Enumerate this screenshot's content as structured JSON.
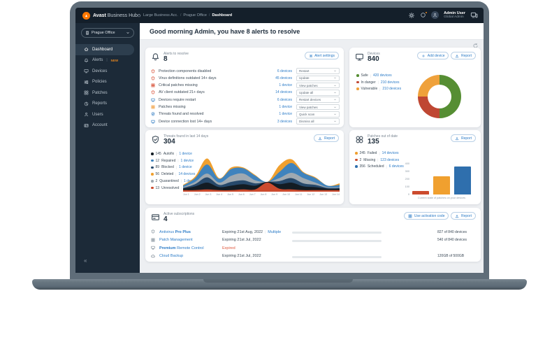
{
  "ui": {
    "divider": "|",
    "chevron_icon": "chevron-down-icon",
    "collapse_glyph": "«",
    "refresh_icon": "refresh-icon"
  },
  "palette": {
    "accent_blue": "#2b7bc7",
    "alert_red": "#d6492f",
    "warn_orange": "#f09d3c",
    "ok_green": "#568e33",
    "brand_orange": "#ff7800"
  },
  "topbar": {
    "brand_bold": "Avast",
    "brand_rest": " Business Hub",
    "breadcrumb": {
      "items": [
        "Large Business Acc.",
        "Prague Office",
        "Dashboard"
      ],
      "separator": "/",
      "home_icon": "home-icon"
    },
    "icons": {
      "settings": "gear-icon",
      "notifications": "notification-icon",
      "avatar": "user-icon",
      "devices": "devices-icon"
    },
    "user": {
      "name": "Admin User",
      "role": "Global Admin"
    }
  },
  "sidebar": {
    "org_selector": {
      "label": "Prague Office",
      "icon": "building-icon"
    },
    "items": [
      {
        "label": "Dashboard",
        "icon": "home-icon"
      },
      {
        "label": "Alerts",
        "icon": "bell-icon",
        "badge": "NEW"
      },
      {
        "label": "Devices",
        "icon": "monitor-icon"
      },
      {
        "label": "Policies",
        "icon": "sliders-icon"
      },
      {
        "label": "Patches",
        "icon": "patch-icon"
      },
      {
        "label": "Reports",
        "icon": "pie-icon"
      },
      {
        "label": "Users",
        "icon": "user-icon"
      },
      {
        "label": "Account",
        "icon": "idcard-icon"
      }
    ]
  },
  "page": {
    "greeting": "Good morning Admin, you have 8 alerts to resolve"
  },
  "alerts_card": {
    "title": "Alerts to resolve",
    "count": "8",
    "icon": "bell-icon",
    "settings_button": "Alert settings",
    "settings_icon": "gear-icon",
    "rows": [
      {
        "icon": "shield-icon",
        "color": "#d6492f",
        "label": "Protection components disabled",
        "devices": "6 devices",
        "action": "Restart"
      },
      {
        "icon": "shield-icon",
        "color": "#d6492f",
        "label": "Virus definitions outdated 14+ days",
        "devices": "45 devices",
        "action": "Update"
      },
      {
        "icon": "patch-icon",
        "color": "#d6492f",
        "label": "Critical patches missing",
        "devices": "1 device",
        "action": "View patches"
      },
      {
        "icon": "shield-icon",
        "color": "#d6492f",
        "label": "AV client outdated 21+ days",
        "devices": "14 devices",
        "action": "Update all"
      },
      {
        "icon": "monitor-icon",
        "color": "#3e84c6",
        "label": "Devices require restart",
        "devices": "6 devices",
        "action": "Restart devices"
      },
      {
        "icon": "patch-icon",
        "color": "#f09d3c",
        "label": "Patches missing",
        "devices": "1 device",
        "action": "View patches"
      },
      {
        "icon": "shield-check-icon",
        "color": "#3e84c6",
        "label": "Threats found and resolved",
        "devices": "1 device",
        "action": "Quick scan"
      },
      {
        "icon": "monitor-icon",
        "color": "#3e84c6",
        "label": "Device connection lost 14+ days",
        "devices": "3 devices",
        "action": "Dismiss all"
      }
    ]
  },
  "devices_card": {
    "title": "Devices",
    "count": "840",
    "icon": "monitor-icon",
    "add_button": "Add device",
    "add_icon": "plus-icon",
    "report_button": "Report",
    "report_icon": "download-icon",
    "legend": [
      {
        "label": "Safe",
        "devices": "420 devices",
        "color": "#568e33"
      },
      {
        "label": "In danger",
        "devices": "210 devices",
        "color": "#bf4733"
      },
      {
        "label": "Vulnerable",
        "devices": "210 devices",
        "color": "#efa13b"
      }
    ]
  },
  "threats_card": {
    "title": "Threats found in last 14 days",
    "count": "304",
    "icon": "shield-check-icon",
    "report_button": "Report",
    "report_icon": "download-icon",
    "legend": [
      {
        "count": "145",
        "label": "Autofix",
        "devices": "1 device",
        "color": "#131c24"
      },
      {
        "count": "12",
        "label": "Repaired",
        "devices": "1 device",
        "color": "#3f83bd"
      },
      {
        "count": "89",
        "label": "Blocked",
        "devices": "1 device",
        "color": "#27496b"
      },
      {
        "count": "56",
        "label": "Deleted",
        "devices": "14 devices",
        "color": "#f0a02f"
      },
      {
        "count": "2",
        "label": "Quarantined",
        "devices": "1 device",
        "color": "#9fa9b1"
      },
      {
        "count": "13",
        "label": "Unresolved",
        "devices": "1 device",
        "color": "#cc4b2e"
      }
    ]
  },
  "patches_card": {
    "title": "Patches out of date",
    "count": "135",
    "icon": "circles-icon",
    "report_button": "Report",
    "report_icon": "download-icon",
    "legend": [
      {
        "count": "245",
        "label": "Failed",
        "devices": "14 devices",
        "color": "#f0a02f"
      },
      {
        "count": "2",
        "label": "Missing",
        "devices": "123 devices",
        "color": "#cc4b2e"
      },
      {
        "count": "356",
        "label": "Scheduled",
        "devices": "6 devices",
        "color": "#2f6fad"
      }
    ]
  },
  "subscriptions_card": {
    "title": "Active subscriptions",
    "count": "4",
    "icon": "card-icon",
    "activation_button": "Use activation code",
    "activation_icon": "grid-icon",
    "report_button": "Report",
    "report_icon": "download-icon",
    "rows": [
      {
        "icon": "shield-icon",
        "pre": "Antivirus ",
        "bold": "Pro Plus",
        "post": "",
        "expiry": "Expiring 21st Aug, 2022",
        "extra": "Multiple",
        "progress": 90,
        "usage": "827 of 840 devices"
      },
      {
        "icon": "patch-icon",
        "pre": "Patch Management",
        "bold": "",
        "post": "",
        "expiry": "Expiring 21st Jul, 2022",
        "progress": 62,
        "usage": "540 of 840 devices"
      },
      {
        "icon": "monitor-icon",
        "pre": "",
        "bold": "Premium",
        "post": " Remote Control",
        "expiry": "Expired",
        "expiry_color": "#e0593f"
      },
      {
        "icon": "cloud-icon",
        "pre": "Cloud Backup",
        "bold": "",
        "post": "",
        "expiry": "Expiring 21st Jul, 2022",
        "progress": 62,
        "usage": "120GB of 500GB"
      }
    ]
  },
  "chart_data": [
    {
      "type": "pie",
      "title": "Devices",
      "total": 840,
      "segments": [
        {
          "label": "Safe",
          "value": 420,
          "color": "#568e33"
        },
        {
          "label": "In danger",
          "value": 210,
          "color": "#bf4733"
        },
        {
          "label": "Vulnerable",
          "value": 210,
          "color": "#efa13b"
        }
      ]
    },
    {
      "type": "area",
      "stacked": true,
      "title": "Threats found in last 14 days",
      "x": [
        "Jun 1",
        "Jun 2",
        "Jun 3",
        "Jun 4",
        "Jun 5",
        "Jun 6",
        "Jun 7",
        "Jun 8",
        "Jun 9",
        "Jun 10",
        "Jun 11",
        "Jun 12",
        "Jun 13",
        "Jun 14"
      ],
      "series": [
        {
          "name": "Unresolved",
          "color": "#cc4b2e",
          "values": [
            2,
            2,
            3,
            2,
            2,
            3,
            3,
            12,
            4,
            3,
            2,
            2,
            2,
            2
          ]
        },
        {
          "name": "Autofix",
          "color": "#131c24",
          "values": [
            2,
            5,
            9,
            4,
            6,
            7,
            5,
            1,
            6,
            9,
            5,
            4,
            2,
            2
          ]
        },
        {
          "name": "Blocked",
          "color": "#27496b",
          "values": [
            1,
            3,
            7,
            3,
            5,
            5,
            3,
            0,
            4,
            6,
            4,
            3,
            1,
            1
          ]
        },
        {
          "name": "Quarantined",
          "color": "#9fa9b1",
          "values": [
            1,
            3,
            5,
            3,
            8,
            9,
            4,
            0,
            4,
            7,
            7,
            3,
            1,
            1
          ]
        },
        {
          "name": "Repaired",
          "color": "#3f83bd",
          "values": [
            2,
            5,
            12,
            5,
            9,
            7,
            6,
            0,
            8,
            13,
            7,
            6,
            2,
            3
          ]
        },
        {
          "name": "Deleted",
          "color": "#f0a02f",
          "values": [
            1,
            2,
            8,
            1,
            2,
            1,
            1,
            0,
            9,
            5,
            1,
            1,
            0,
            2
          ]
        }
      ],
      "ylim": [
        0,
        50
      ],
      "grid": false,
      "legend_position": "left"
    },
    {
      "type": "bar",
      "title": "Patches out of date",
      "categories": [
        "Missing",
        "Failed",
        "Scheduled"
      ],
      "values": [
        20,
        240,
        360
      ],
      "colors": [
        "#cc4b2e",
        "#f0a02f",
        "#2f6fad"
      ],
      "ylim": [
        0,
        400
      ],
      "yticks": [
        "400",
        "300",
        "200",
        "100",
        "0"
      ],
      "caption": "Current state of patches on your devices"
    }
  ]
}
